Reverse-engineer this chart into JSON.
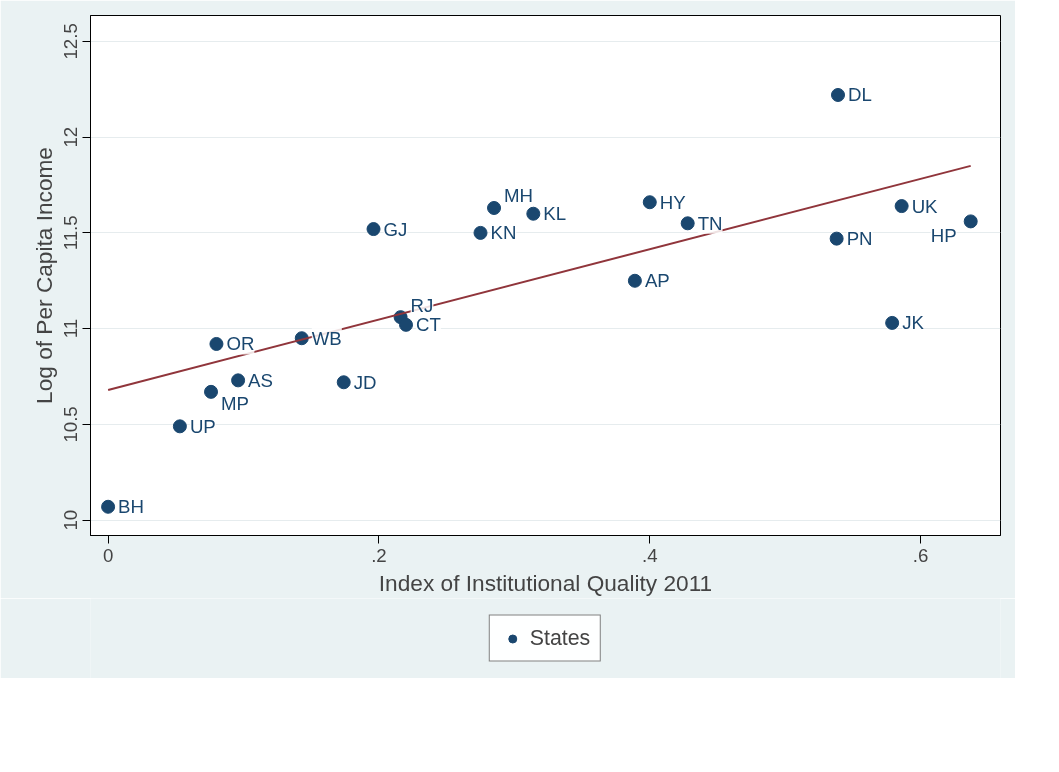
{
  "chart_data": {
    "type": "scatter",
    "xlabel": "Index of Institutional Quality 2011",
    "ylabel": "Log of Per Capita Income",
    "x": [
      0,
      0.053,
      0.076,
      0.096,
      0.08,
      0.143,
      0.174,
      0.196,
      0.216,
      0.22,
      0.275,
      0.285,
      0.314,
      0.389,
      0.4,
      0.428,
      0.539,
      0.538,
      0.579,
      0.586,
      0.637
    ],
    "series": [
      {
        "name": "States",
        "color": "#1a476f",
        "marker": "circle",
        "values": [
          10.07,
          10.49,
          10.67,
          10.73,
          10.92,
          10.95,
          10.72,
          11.52,
          11.06,
          11.02,
          11.5,
          11.63,
          11.6,
          11.25,
          11.66,
          11.55,
          12.22,
          11.47,
          11.03,
          11.64,
          11.56
        ]
      },
      {
        "type": "line",
        "color": "#90353b",
        "x": [
          0,
          0.637
        ],
        "values": [
          10.68,
          11.85
        ]
      }
    ],
    "annotations": [
      {
        "text": "BH",
        "x": 0,
        "y": 10.07
      },
      {
        "text": "UP",
        "x": 0.053,
        "y": 10.49
      },
      {
        "text": "MP",
        "x": 0.076,
        "y": 10.67
      },
      {
        "text": "AS",
        "x": 0.096,
        "y": 10.73
      },
      {
        "text": "OR",
        "x": 0.08,
        "y": 10.92
      },
      {
        "text": "WB",
        "x": 0.143,
        "y": 10.95
      },
      {
        "text": "JD",
        "x": 0.174,
        "y": 10.72
      },
      {
        "text": "GJ",
        "x": 0.196,
        "y": 11.52
      },
      {
        "text": "RJ",
        "x": 0.216,
        "y": 11.06
      },
      {
        "text": "CT",
        "x": 0.22,
        "y": 11.02
      },
      {
        "text": "KN",
        "x": 0.275,
        "y": 11.5
      },
      {
        "text": "MH",
        "x": 0.285,
        "y": 11.63
      },
      {
        "text": "KL",
        "x": 0.314,
        "y": 11.6
      },
      {
        "text": "AP",
        "x": 0.389,
        "y": 11.25
      },
      {
        "text": "HY",
        "x": 0.4,
        "y": 11.66
      },
      {
        "text": "TN",
        "x": 0.428,
        "y": 11.55
      },
      {
        "text": "DL",
        "x": 0.539,
        "y": 12.22
      },
      {
        "text": "PN",
        "x": 0.538,
        "y": 11.47
      },
      {
        "text": "JK",
        "x": 0.579,
        "y": 11.03
      },
      {
        "text": "UK",
        "x": 0.586,
        "y": 11.64
      },
      {
        "text": "HP",
        "x": 0.637,
        "y": 11.56
      }
    ],
    "xlim": [
      -0.013,
      0.659
    ],
    "ylim": [
      9.92,
      12.635
    ],
    "xticks": [
      0,
      {
        "value": 0.2,
        "label": ".2"
      },
      {
        "value": 0.4,
        "label": ".4"
      },
      {
        "value": 0.6,
        "label": ".6"
      }
    ],
    "yticks": [
      10,
      10.5,
      11,
      11.5,
      12,
      12.5
    ],
    "grid": "y",
    "legend": "bottom"
  }
}
